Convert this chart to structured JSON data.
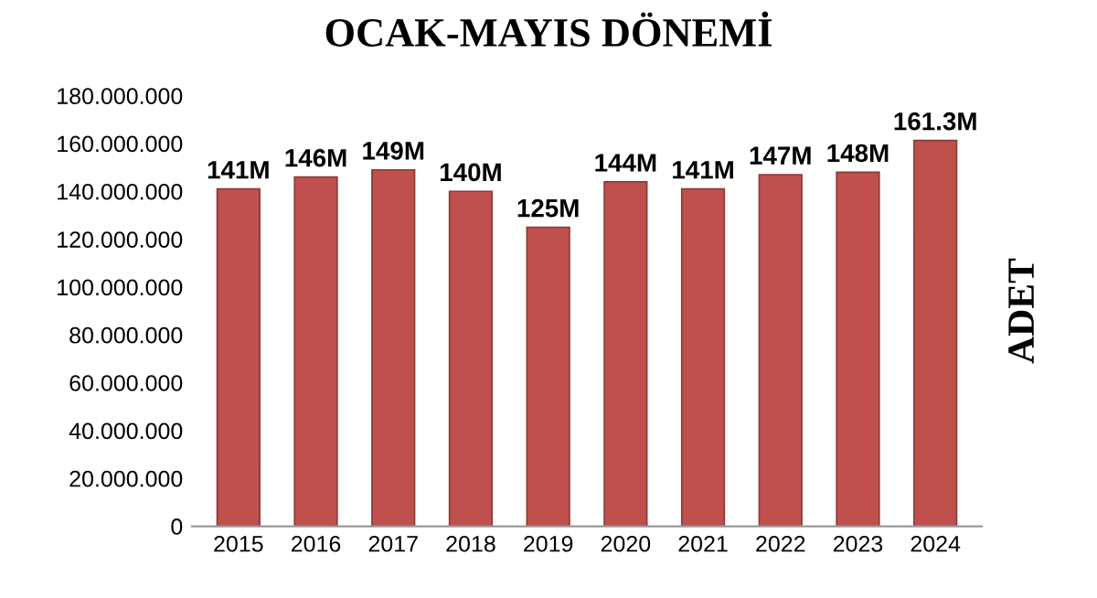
{
  "chart_data": {
    "type": "bar",
    "title": "OCAK-MAYIS DÖNEMİ",
    "ylabel": "ADET",
    "categories": [
      "2015",
      "2016",
      "2017",
      "2018",
      "2019",
      "2020",
      "2021",
      "2022",
      "2023",
      "2024"
    ],
    "values": [
      141000000,
      146000000,
      149000000,
      140000000,
      125000000,
      144000000,
      141000000,
      147000000,
      148000000,
      161300000
    ],
    "value_labels": [
      "141M",
      "146M",
      "149M",
      "140M",
      "125M",
      "144M",
      "141M",
      "147M",
      "148M",
      "161.3M"
    ],
    "color": "#c0504d",
    "ylim": [
      0,
      180000000
    ],
    "yticks": [
      0,
      {
        "value": 20000000,
        "label": "20.000.000"
      },
      {
        "value": 40000000,
        "label": "40.000.000"
      },
      {
        "value": 60000000,
        "label": "60.000.000"
      },
      {
        "value": 80000000,
        "label": "80.000.000"
      },
      {
        "value": 100000000,
        "label": "100.000.000"
      },
      {
        "value": 120000000,
        "label": "120.000.000"
      },
      {
        "value": 140000000,
        "label": "140.000.000"
      },
      {
        "value": 160000000,
        "label": "160.000.000"
      },
      {
        "value": 180000000,
        "label": "180.000.000"
      }
    ],
    "grid": false,
    "legend": false
  }
}
